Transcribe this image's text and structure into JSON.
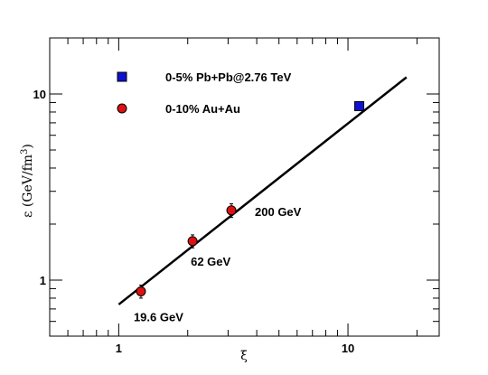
{
  "chart_data": {
    "type": "scatter",
    "xscale": "log",
    "yscale": "log",
    "xlim": [
      0.5,
      25
    ],
    "ylim": [
      0.5,
      20
    ],
    "xlabel": "ξ",
    "ylabel": "ε (GeV/fm³)",
    "ylabel_parts": {
      "prefix": "ε (GeV/fm",
      "sup": "3",
      "suffix": ")"
    },
    "x_ticks": [
      {
        "value": 1,
        "label": "1"
      },
      {
        "value": 10,
        "label": "10"
      }
    ],
    "y_ticks": [
      {
        "value": 1,
        "label": "1"
      },
      {
        "value": 10,
        "label": "10"
      }
    ],
    "grid": false,
    "legend_placement": "top-left",
    "series": [
      {
        "name": "0-5% Pb+Pb@2.76 TeV",
        "marker": "square",
        "color": "#1010d0",
        "points": [
          {
            "x": 11.2,
            "y": 8.6
          }
        ]
      },
      {
        "name": "0-10% Au+Au",
        "marker": "circle",
        "color": "#dd1111",
        "points": [
          {
            "x": 1.25,
            "y": 0.87,
            "err": 0.07,
            "label": "19.6 GeV"
          },
          {
            "x": 2.1,
            "y": 1.62,
            "err": 0.13,
            "label": "62 GeV"
          },
          {
            "x": 3.1,
            "y": 2.37,
            "err": 0.2,
            "label": "200 GeV"
          }
        ]
      }
    ],
    "fit_line": {
      "x": [
        1.0,
        18.0
      ],
      "y": [
        0.74,
        12.3
      ]
    }
  }
}
